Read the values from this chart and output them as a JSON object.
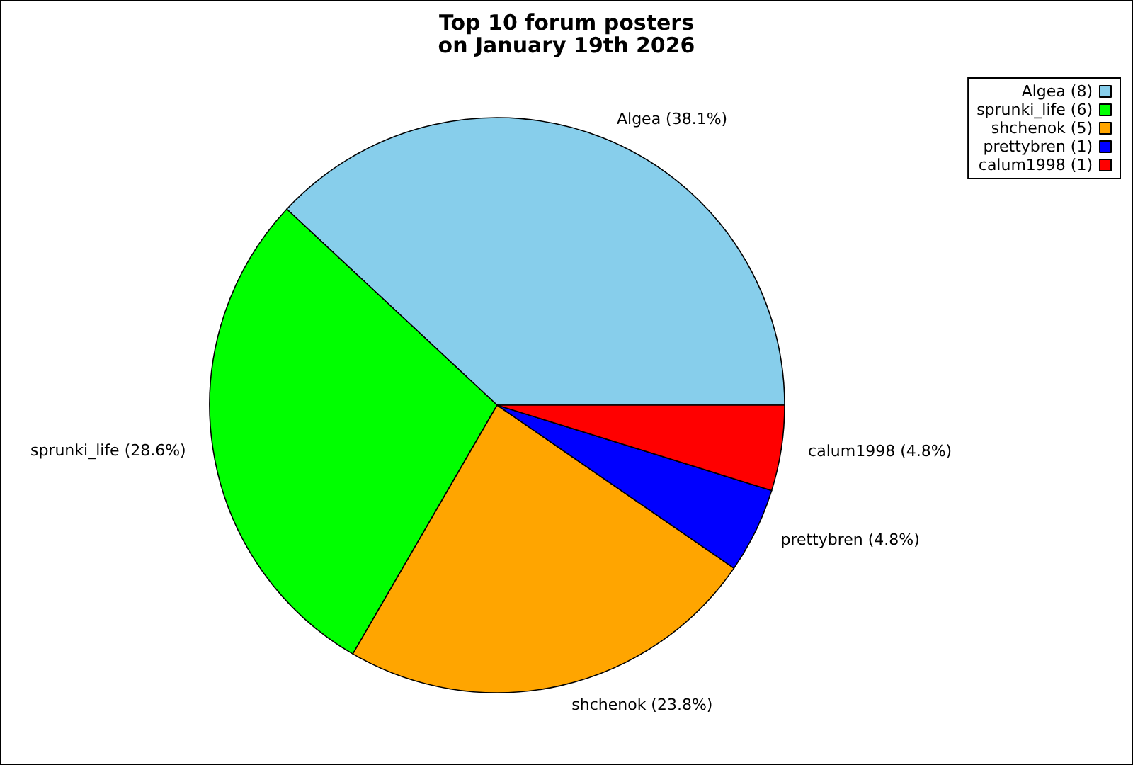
{
  "chart_data": {
    "type": "pie",
    "title": "Top 10 forum posters\non January 19th 2026",
    "categories": [
      "Algea (8)",
      "sprunki_life (6)",
      "shchenok (5)",
      "prettybren (1)",
      "calum1998 (1)"
    ],
    "values": [
      38.1,
      28.6,
      23.8,
      4.8,
      4.8
    ],
    "value_labels": [
      "Algea (38.1%)",
      "sprunki_life (28.6%)",
      "shchenok (23.8%)",
      "prettybren (4.8%)",
      "calum1998 (4.8%)"
    ],
    "colors": [
      "#87ceeb",
      "#00ff00",
      "#ffa500",
      "#0000ff",
      "#ff0000"
    ],
    "legend": "top right"
  }
}
